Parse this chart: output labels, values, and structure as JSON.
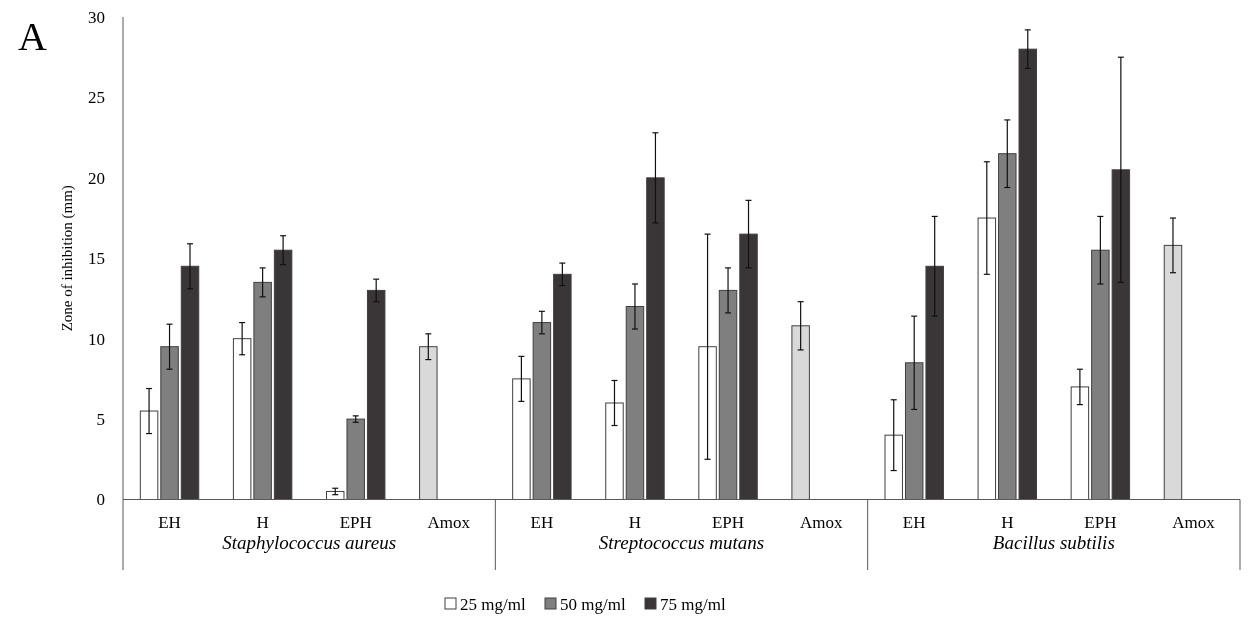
{
  "chart_data": {
    "type": "bar",
    "title": "A",
    "ylabel": "Zone of inhibition (mm)",
    "categories": [
      "EH",
      "H",
      "EPH",
      "Amox",
      "EH",
      "H",
      "EPH",
      "Amox",
      "EH",
      "H",
      "EPH",
      "Amox"
    ],
    "annotations": [
      "Staphylococcus aureus",
      "Streptococcus mutans",
      "Bacillus subtilis"
    ],
    "series": [
      {
        "name": "25 mg/ml",
        "color": "#ffffff",
        "colors": [
          "#ffffff",
          "#ffffff",
          "#ffffff",
          "#d9d9d9",
          "#ffffff",
          "#ffffff",
          "#ffffff",
          "#d9d9d9",
          "#ffffff",
          "#ffffff",
          "#ffffff",
          "#d9d9d9"
        ],
        "values": [
          5.5,
          10,
          0.5,
          9.5,
          7.5,
          6,
          9.5,
          10.8,
          4,
          17.5,
          7,
          15.8
        ],
        "errors": [
          1.4,
          1,
          0.2,
          0.8,
          1.4,
          1.4,
          7,
          1.5,
          2.2,
          3.5,
          1.1,
          1.7
        ]
      },
      {
        "name": "50 mg/ml",
        "color": "#7f7f7f",
        "values": [
          9.5,
          13.5,
          5,
          null,
          11,
          12,
          13,
          null,
          8.5,
          21.5,
          15.5,
          null
        ],
        "errors": [
          1.4,
          0.9,
          0.2,
          null,
          0.7,
          1.4,
          1.4,
          null,
          2.9,
          2.1,
          2.1,
          null
        ]
      },
      {
        "name": "75 mg/ml",
        "color": "#3a3536",
        "values": [
          14.5,
          15.5,
          13,
          null,
          14,
          20,
          16.5,
          null,
          14.5,
          28,
          20.5,
          null
        ],
        "errors": [
          1.4,
          0.9,
          0.7,
          null,
          0.7,
          2.8,
          2.1,
          null,
          3.1,
          1.2,
          7,
          null
        ]
      }
    ],
    "ylim": [
      0,
      30
    ],
    "yticks": [
      0,
      5,
      10,
      15,
      20,
      25,
      30
    ],
    "grid": false,
    "legend": "bottom"
  }
}
